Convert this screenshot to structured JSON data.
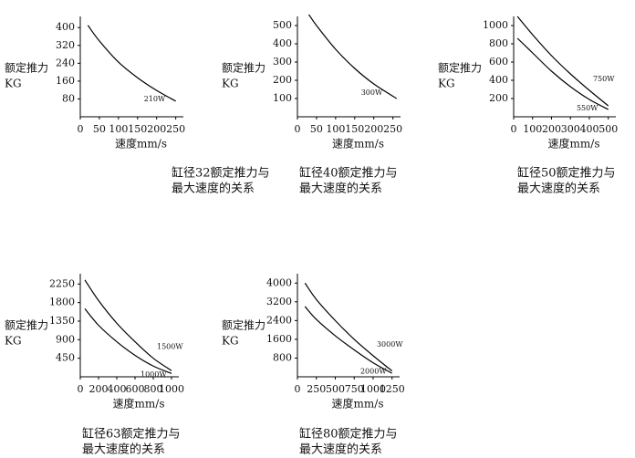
{
  "chart_data": [
    {
      "type": "line",
      "caption": [
        "缸径32额定推力与",
        "最大速度的关系"
      ],
      "y_label": [
        "额定推力",
        "KG"
      ],
      "x_label": "速度mm/s",
      "x": [
        20,
        50,
        100,
        150,
        200,
        250
      ],
      "series": [
        {
          "name": "210W",
          "color": "#000000",
          "values": [
            410,
            340,
            245,
            175,
            118,
            70
          ]
        }
      ],
      "xlim": [
        0,
        270
      ],
      "ylim": [
        0,
        450
      ],
      "xticks": [
        0,
        50,
        100,
        150,
        200,
        250
      ],
      "yticks": [
        80,
        160,
        240,
        320,
        400
      ]
    },
    {
      "type": "line",
      "caption": [
        "缸径40额定推力与",
        "最大速度的关系"
      ],
      "y_label": [
        "额定推力",
        "KG"
      ],
      "x_label": "速度mm/s",
      "x": [
        30,
        50,
        100,
        150,
        200,
        260
      ],
      "series": [
        {
          "name": "300W",
          "color": "#000000",
          "values": [
            560,
            500,
            370,
            265,
            180,
            100
          ]
        }
      ],
      "xlim": [
        0,
        270
      ],
      "ylim": [
        0,
        550
      ],
      "xticks": [
        0,
        50,
        100,
        150,
        200,
        250
      ],
      "yticks": [
        100,
        200,
        300,
        400,
        500
      ]
    },
    {
      "type": "line",
      "caption": [
        "缸径50额定推力与",
        "最大速度的关系"
      ],
      "y_label": [
        "额定推力",
        "KG"
      ],
      "x_label": "速度mm/s",
      "x": [
        20,
        100,
        200,
        300,
        400,
        500
      ],
      "series": [
        {
          "name": "750W",
          "color": "#000000",
          "values": [
            1100,
            900,
            670,
            470,
            290,
            120
          ]
        },
        {
          "name": "550W",
          "color": "#000000",
          "values": [
            860,
            700,
            500,
            330,
            190,
            80
          ]
        }
      ],
      "xlim": [
        0,
        540
      ],
      "ylim": [
        0,
        1100
      ],
      "xticks": [
        0,
        100,
        200,
        300,
        400,
        500
      ],
      "yticks": [
        200,
        400,
        600,
        800,
        1000
      ]
    },
    {
      "type": "line",
      "caption": [
        "缸径63额定推力与",
        "最大速度的关系"
      ],
      "y_label": [
        "额定推力",
        "KG"
      ],
      "x_label": "速度mm/s",
      "x": [
        50,
        200,
        400,
        600,
        800,
        1000
      ],
      "series": [
        {
          "name": "1500W",
          "color": "#000000",
          "values": [
            2350,
            1850,
            1300,
            850,
            450,
            150
          ]
        },
        {
          "name": "1000W",
          "color": "#000000",
          "values": [
            1650,
            1250,
            850,
            520,
            260,
            80
          ]
        }
      ],
      "xlim": [
        0,
        1080
      ],
      "ylim": [
        0,
        2500
      ],
      "xticks": [
        0,
        200,
        400,
        600,
        800,
        1000
      ],
      "yticks": [
        450,
        900,
        1350,
        1800,
        2250
      ]
    },
    {
      "type": "line",
      "caption": [
        "缸径80额定推力与",
        "最大速度的关系"
      ],
      "y_label": [
        "额定推力",
        "KG"
      ],
      "x_label": "速度mm/s",
      "x": [
        100,
        250,
        500,
        750,
        1000,
        1250
      ],
      "series": [
        {
          "name": "3000W",
          "color": "#000000",
          "values": [
            4000,
            3300,
            2400,
            1600,
            900,
            250
          ]
        },
        {
          "name": "2000W",
          "color": "#000000",
          "values": [
            3000,
            2450,
            1750,
            1150,
            600,
            150
          ]
        }
      ],
      "xlim": [
        0,
        1350
      ],
      "ylim": [
        0,
        4400
      ],
      "xticks": [
        0,
        250,
        500,
        750,
        1000,
        1250
      ],
      "yticks": [
        800,
        1600,
        2400,
        3200,
        4000
      ]
    }
  ]
}
